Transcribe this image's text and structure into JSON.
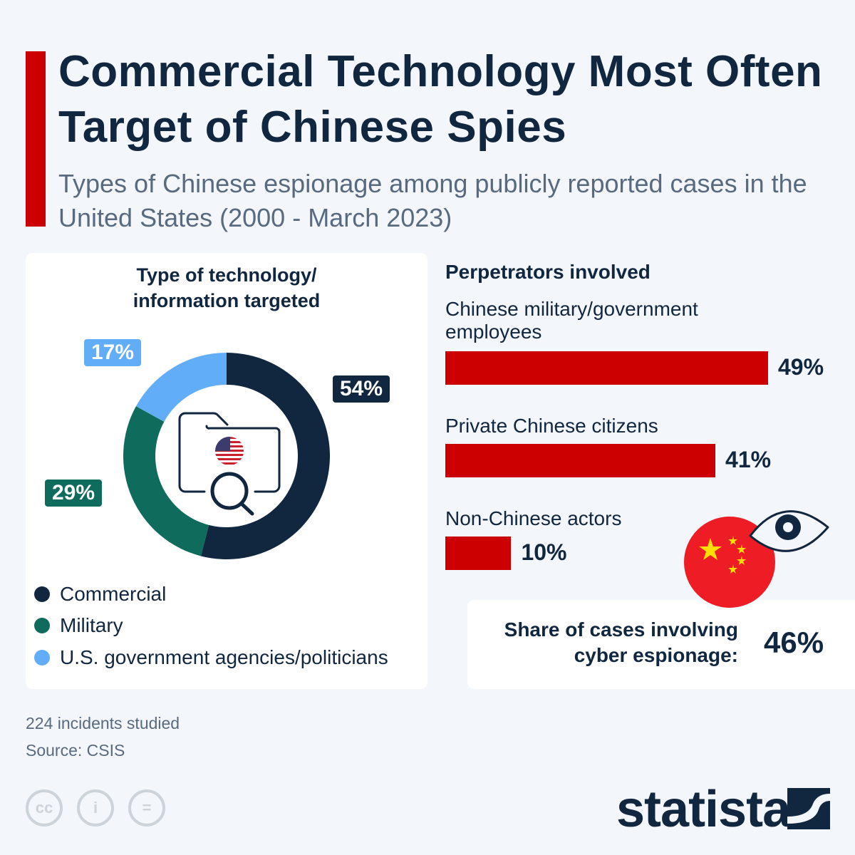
{
  "title": "Commercial Technology Most Often Target of Chinese Spies",
  "subtitle": "Types of Chinese espionage among publicly reported cases in the United States (2000 - March 2023)",
  "chart_data": [
    {
      "type": "pie",
      "title": "Type of technology/ information targeted",
      "categories": [
        "Commercial",
        "Military",
        "U.S. government agencies/politicians"
      ],
      "values": [
        54,
        29,
        17
      ],
      "labels": [
        "54%",
        "29%",
        "17%"
      ],
      "colors": [
        "#11263f",
        "#0f6b5c",
        "#62adf7"
      ],
      "legend": "bottom"
    },
    {
      "type": "bar",
      "title": "Perpetrators involved",
      "categories": [
        "Chinese military/government employees",
        "Private Chinese citizens",
        "Non-Chinese actors"
      ],
      "values": [
        49,
        41,
        10
      ],
      "labels": [
        "49%",
        "41%",
        "10%"
      ],
      "color": "#cc0000"
    }
  ],
  "cyber": {
    "label": "Share of cases involving cyber espionage:",
    "value": "46%"
  },
  "footer": {
    "incidents": "224 incidents studied",
    "source": "Source: CSIS"
  },
  "brand": {
    "name": "statista",
    "license_icons": [
      "cc-icon",
      "attribution-icon",
      "no-derivatives-icon"
    ]
  }
}
